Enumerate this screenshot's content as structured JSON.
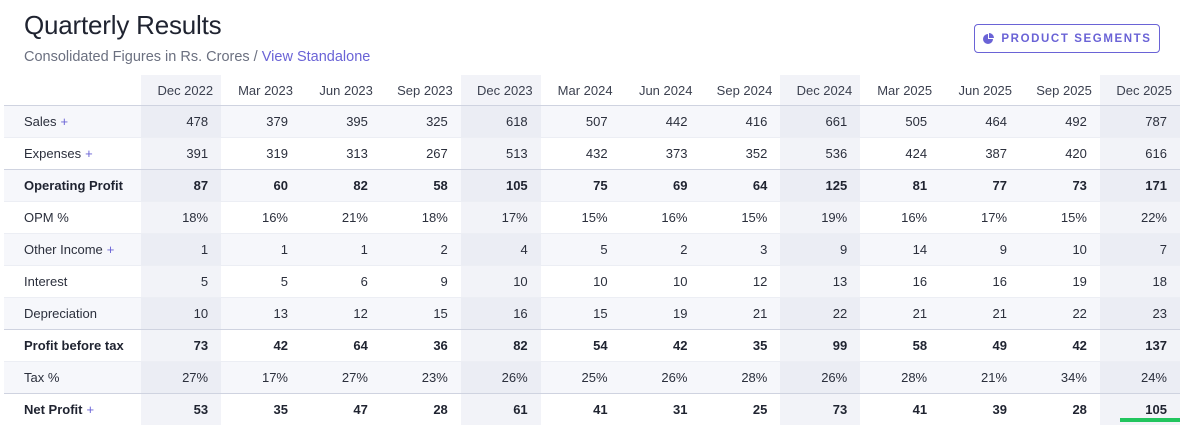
{
  "header": {
    "title": "Quarterly Results",
    "subtitle_text": "Consolidated Figures in Rs. Crores / ",
    "subtitle_link": "View Standalone",
    "segments_button": "PRODUCT SEGMENTS"
  },
  "table": {
    "columns": [
      "Dec 2022",
      "Mar 2023",
      "Jun 2023",
      "Sep 2023",
      "Dec 2023",
      "Mar 2024",
      "Jun 2024",
      "Sep 2024",
      "Dec 2024",
      "Mar 2025",
      "Jun 2025",
      "Sep 2025",
      "Dec 2025"
    ],
    "rows": [
      {
        "label": "Sales",
        "expandable": true,
        "strong": false,
        "values": [
          "478",
          "379",
          "395",
          "325",
          "618",
          "507",
          "442",
          "416",
          "661",
          "505",
          "464",
          "492",
          "787"
        ]
      },
      {
        "label": "Expenses",
        "expandable": true,
        "strong": false,
        "values": [
          "391",
          "319",
          "313",
          "267",
          "513",
          "432",
          "373",
          "352",
          "536",
          "424",
          "387",
          "420",
          "616"
        ]
      },
      {
        "label": "Operating Profit",
        "expandable": false,
        "strong": true,
        "values": [
          "87",
          "60",
          "82",
          "58",
          "105",
          "75",
          "69",
          "64",
          "125",
          "81",
          "77",
          "73",
          "171"
        ]
      },
      {
        "label": "OPM %",
        "expandable": false,
        "strong": false,
        "values": [
          "18%",
          "16%",
          "21%",
          "18%",
          "17%",
          "15%",
          "16%",
          "15%",
          "19%",
          "16%",
          "17%",
          "15%",
          "22%"
        ]
      },
      {
        "label": "Other Income",
        "expandable": true,
        "strong": false,
        "values": [
          "1",
          "1",
          "1",
          "2",
          "4",
          "5",
          "2",
          "3",
          "9",
          "14",
          "9",
          "10",
          "7"
        ]
      },
      {
        "label": "Interest",
        "expandable": false,
        "strong": false,
        "values": [
          "5",
          "5",
          "6",
          "9",
          "10",
          "10",
          "10",
          "12",
          "13",
          "16",
          "16",
          "19",
          "18"
        ]
      },
      {
        "label": "Depreciation",
        "expandable": false,
        "strong": false,
        "values": [
          "10",
          "13",
          "12",
          "15",
          "16",
          "15",
          "19",
          "21",
          "22",
          "21",
          "21",
          "22",
          "23"
        ]
      },
      {
        "label": "Profit before tax",
        "expandable": false,
        "strong": true,
        "values": [
          "73",
          "42",
          "64",
          "36",
          "82",
          "54",
          "42",
          "35",
          "99",
          "58",
          "49",
          "42",
          "137"
        ]
      },
      {
        "label": "Tax %",
        "expandable": false,
        "strong": false,
        "values": [
          "27%",
          "17%",
          "27%",
          "23%",
          "26%",
          "25%",
          "26%",
          "28%",
          "26%",
          "28%",
          "21%",
          "34%",
          "24%"
        ]
      },
      {
        "label": "Net Profit",
        "expandable": true,
        "strong": true,
        "values": [
          "53",
          "35",
          "47",
          "28",
          "61",
          "41",
          "31",
          "25",
          "73",
          "41",
          "39",
          "28",
          "105"
        ]
      }
    ],
    "plus_symbol": "+"
  },
  "colors": {
    "accent": "#6a63d6",
    "highlight": "#22c55e"
  },
  "icons": {
    "segments_icon": "pie-chart-icon"
  }
}
